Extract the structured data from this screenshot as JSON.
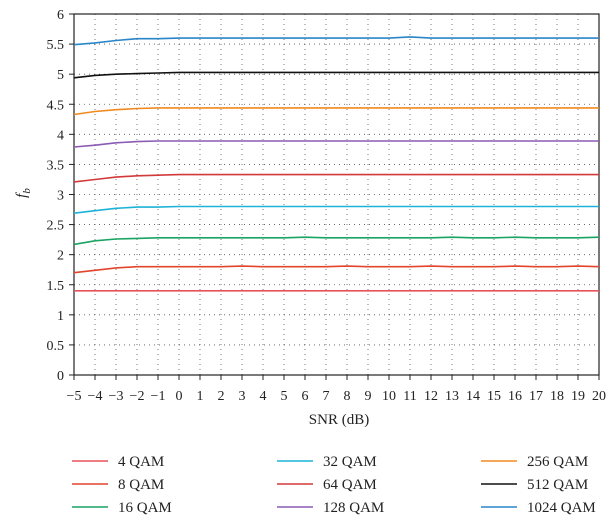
{
  "chart_data": {
    "type": "line",
    "xlabel": "SNR (dB)",
    "ylabel_main": "f",
    "ylabel_sub": "b",
    "xlim": [
      -5,
      20
    ],
    "ylim": [
      0,
      6
    ],
    "x_ticks": [
      -5,
      -4,
      -3,
      -2,
      -1,
      0,
      1,
      2,
      3,
      4,
      5,
      6,
      7,
      8,
      9,
      10,
      11,
      12,
      13,
      14,
      15,
      16,
      17,
      18,
      19,
      20
    ],
    "x_tick_labels": [
      "−5",
      "−4",
      "−3",
      "−2",
      "−1",
      "0",
      "1",
      "2",
      "3",
      "4",
      "5",
      "6",
      "7",
      "8",
      "9",
      "10",
      "11",
      "12",
      "13",
      "14",
      "15",
      "16",
      "17",
      "18",
      "19",
      "20"
    ],
    "y_ticks": [
      0,
      0.5,
      1,
      1.5,
      2,
      2.5,
      3,
      3.5,
      4,
      4.5,
      5,
      5.5,
      6
    ],
    "y_tick_labels": [
      "0",
      "0.5",
      "1",
      "1.5",
      "2",
      "2.5",
      "3",
      "3.5",
      "4",
      "4.5",
      "5",
      "5.5",
      "6"
    ],
    "grid": true,
    "legend_position": "bottom",
    "x": [
      -5,
      -4,
      -3,
      -2,
      -1,
      0,
      1,
      2,
      3,
      4,
      5,
      6,
      7,
      8,
      9,
      10,
      11,
      12,
      13,
      14,
      15,
      16,
      17,
      18,
      19,
      20
    ],
    "series": [
      {
        "name": "4 QAM",
        "color": "#e8525a",
        "values": [
          1.4,
          1.4,
          1.4,
          1.4,
          1.4,
          1.4,
          1.4,
          1.4,
          1.4,
          1.4,
          1.4,
          1.4,
          1.4,
          1.4,
          1.4,
          1.4,
          1.4,
          1.4,
          1.4,
          1.4,
          1.4,
          1.4,
          1.4,
          1.4,
          1.4,
          1.4
        ]
      },
      {
        "name": "8 QAM",
        "color": "#e2452b",
        "values": [
          1.7,
          1.74,
          1.78,
          1.8,
          1.8,
          1.8,
          1.8,
          1.8,
          1.81,
          1.8,
          1.8,
          1.8,
          1.8,
          1.81,
          1.8,
          1.8,
          1.8,
          1.81,
          1.8,
          1.8,
          1.8,
          1.81,
          1.8,
          1.8,
          1.81,
          1.8
        ]
      },
      {
        "name": "16 QAM",
        "color": "#19a463",
        "values": [
          2.17,
          2.23,
          2.26,
          2.27,
          2.28,
          2.28,
          2.28,
          2.28,
          2.28,
          2.28,
          2.28,
          2.29,
          2.28,
          2.28,
          2.28,
          2.28,
          2.28,
          2.28,
          2.29,
          2.28,
          2.28,
          2.29,
          2.28,
          2.28,
          2.28,
          2.29
        ]
      },
      {
        "name": "32 QAM",
        "color": "#1db3d8",
        "values": [
          2.69,
          2.73,
          2.77,
          2.79,
          2.79,
          2.8,
          2.8,
          2.8,
          2.8,
          2.8,
          2.8,
          2.8,
          2.8,
          2.8,
          2.8,
          2.8,
          2.8,
          2.8,
          2.8,
          2.8,
          2.8,
          2.8,
          2.8,
          2.8,
          2.8,
          2.8
        ]
      },
      {
        "name": "64 QAM",
        "color": "#d23a3a",
        "values": [
          3.21,
          3.25,
          3.29,
          3.31,
          3.32,
          3.33,
          3.33,
          3.33,
          3.33,
          3.33,
          3.33,
          3.33,
          3.33,
          3.33,
          3.33,
          3.33,
          3.33,
          3.33,
          3.33,
          3.33,
          3.33,
          3.33,
          3.33,
          3.33,
          3.33,
          3.33
        ]
      },
      {
        "name": "128 QAM",
        "color": "#8a5bb5",
        "values": [
          3.79,
          3.82,
          3.86,
          3.88,
          3.89,
          3.89,
          3.89,
          3.89,
          3.89,
          3.89,
          3.89,
          3.89,
          3.89,
          3.89,
          3.89,
          3.89,
          3.89,
          3.89,
          3.89,
          3.89,
          3.89,
          3.89,
          3.89,
          3.89,
          3.89,
          3.89
        ]
      },
      {
        "name": "256 QAM",
        "color": "#f08a1f",
        "values": [
          4.33,
          4.38,
          4.41,
          4.43,
          4.44,
          4.44,
          4.44,
          4.44,
          4.44,
          4.44,
          4.44,
          4.44,
          4.44,
          4.44,
          4.44,
          4.44,
          4.44,
          4.44,
          4.44,
          4.44,
          4.44,
          4.44,
          4.44,
          4.44,
          4.44,
          4.44
        ]
      },
      {
        "name": "512 QAM",
        "color": "#111111",
        "values": [
          4.94,
          4.98,
          5.0,
          5.01,
          5.02,
          5.03,
          5.03,
          5.03,
          5.03,
          5.03,
          5.03,
          5.03,
          5.03,
          5.03,
          5.03,
          5.03,
          5.03,
          5.03,
          5.03,
          5.03,
          5.03,
          5.03,
          5.03,
          5.03,
          5.03,
          5.03
        ]
      },
      {
        "name": "1024 QAM",
        "color": "#2a86c8",
        "values": [
          5.49,
          5.52,
          5.56,
          5.59,
          5.59,
          5.6,
          5.6,
          5.6,
          5.6,
          5.6,
          5.6,
          5.6,
          5.6,
          5.6,
          5.6,
          5.6,
          5.62,
          5.6,
          5.6,
          5.6,
          5.6,
          5.6,
          5.6,
          5.6,
          5.6,
          5.6
        ]
      }
    ]
  }
}
